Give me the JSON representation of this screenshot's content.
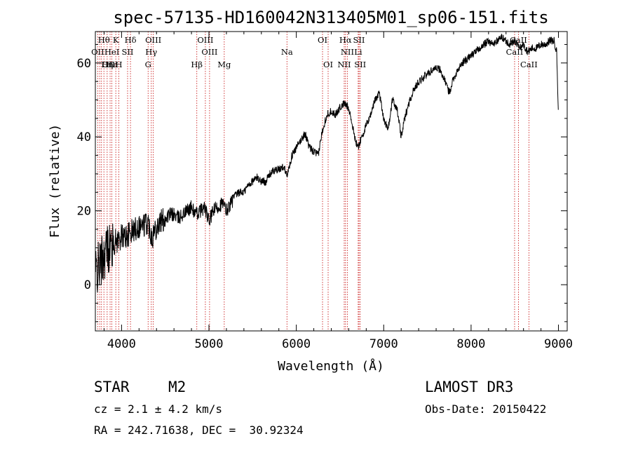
{
  "chart_data": {
    "type": "line",
    "title": "spec-57135-HD160042N313405M01_sp06-151.fits",
    "xlabel": "Wavelength (Å)",
    "ylabel": "Flux (relative)",
    "xlim": [
      3700,
      9100
    ],
    "ylim": [
      -12.5,
      68.5
    ],
    "xticks": [
      4000,
      5000,
      6000,
      7000,
      8000,
      9000
    ],
    "xtick_labels": [
      "4000",
      "5000",
      "6000",
      "7000",
      "8000",
      "9000"
    ],
    "yticks": [
      0,
      20,
      40,
      60
    ],
    "ytick_labels": [
      "0",
      "20",
      "40",
      "60"
    ],
    "series": [
      {
        "name": "flux",
        "color": "#000000",
        "x": [
          3700,
          3760,
          3800,
          3830,
          3860,
          3900,
          3950,
          4000,
          4050,
          4100,
          4150,
          4200,
          4250,
          4300,
          4350,
          4400,
          4450,
          4500,
          4550,
          4600,
          4650,
          4700,
          4750,
          4800,
          4850,
          4900,
          4950,
          5000,
          5050,
          5100,
          5150,
          5200,
          5250,
          5300,
          5350,
          5400,
          5450,
          5500,
          5550,
          5600,
          5650,
          5700,
          5750,
          5800,
          5850,
          5900,
          5950,
          6000,
          6050,
          6100,
          6150,
          6200,
          6250,
          6300,
          6350,
          6400,
          6450,
          6500,
          6550,
          6600,
          6650,
          6700,
          6750,
          6800,
          6850,
          6900,
          6950,
          7000,
          7050,
          7100,
          7150,
          7200,
          7250,
          7300,
          7350,
          7400,
          7450,
          7500,
          7550,
          7600,
          7650,
          7700,
          7750,
          7800,
          7850,
          7900,
          7950,
          8000,
          8050,
          8100,
          8150,
          8200,
          8250,
          8300,
          8350,
          8400,
          8450,
          8500,
          8550,
          8600,
          8650,
          8700,
          8750,
          8800,
          8850,
          8900,
          8950,
          8980,
          9000
        ],
        "y": [
          3,
          6,
          8,
          10,
          10,
          11,
          12,
          13,
          13,
          14,
          15,
          16,
          16,
          17,
          13,
          16,
          17,
          18,
          19,
          19,
          18,
          19,
          20,
          21,
          19,
          20,
          21,
          17,
          20,
          21,
          22,
          20,
          22,
          24,
          25,
          25,
          27,
          28,
          29,
          28,
          28,
          30,
          31,
          31,
          32,
          30,
          35,
          37,
          39,
          41,
          37,
          36,
          35,
          42,
          46,
          47,
          46,
          48,
          49,
          48,
          42,
          37,
          40,
          43,
          46,
          50,
          52,
          45,
          42,
          50,
          48,
          40,
          46,
          50,
          53,
          55,
          56,
          57,
          58,
          59,
          58,
          55,
          52,
          56,
          58,
          60,
          61,
          62,
          63,
          64,
          65,
          66,
          65,
          66,
          67,
          66,
          65,
          66,
          64,
          65,
          63,
          64,
          64,
          65,
          65,
          66,
          66,
          63,
          45
        ]
      }
    ],
    "lines_top": [
      {
        "label": "Hθ",
        "x": 3798
      },
      {
        "label": "K",
        "x": 3934
      },
      {
        "label": "Hδ",
        "x": 4102
      },
      {
        "label": "OIII",
        "x": 4363
      },
      {
        "label": "OIII",
        "x": 4959
      },
      {
        "label": "OI",
        "x": 6300
      },
      {
        "label": "Hα",
        "x": 6563
      },
      {
        "label": "SII",
        "x": 6717
      },
      {
        "label": "CaII",
        "x": 8542
      }
    ],
    "lines_middle": [
      {
        "label": "OII",
        "x": 3727
      },
      {
        "label": "HeI",
        "x": 3889
      },
      {
        "label": "SII",
        "x": 4069
      },
      {
        "label": "Hγ",
        "x": 4340
      },
      {
        "label": "OIII",
        "x": 5007
      },
      {
        "label": "Na",
        "x": 5893
      },
      {
        "label": "NII",
        "x": 6584
      },
      {
        "label": "Li",
        "x": 6708
      },
      {
        "label": "CaII",
        "x": 8498
      }
    ],
    "lines_bottom": [
      {
        "label": "OIII",
        "x": 3869
      },
      {
        "label": "Hε",
        "x": 3889
      },
      {
        "label": "Hη",
        "x": 3835
      },
      {
        "label": "H",
        "x": 3969
      },
      {
        "label": "G",
        "x": 4304
      },
      {
        "label": "Hβ",
        "x": 4861
      },
      {
        "label": "Mg",
        "x": 5175
      },
      {
        "label": "OI",
        "x": 6364
      },
      {
        "label": "NII",
        "x": 6548
      },
      {
        "label": "SII",
        "x": 6731
      },
      {
        "label": "CaII",
        "x": 8662
      }
    ],
    "marker_lines_x": [
      3727,
      3750,
      3770,
      3798,
      3835,
      3869,
      3889,
      3934,
      3969,
      4069,
      4102,
      4304,
      4340,
      4363,
      4861,
      4959,
      5007,
      5175,
      5893,
      6300,
      6364,
      6548,
      6563,
      6584,
      6708,
      6717,
      6731,
      8498,
      8542,
      8662
    ]
  },
  "info": {
    "class": "STAR",
    "subclass": "M2",
    "cz": "cz = 2.1 ± 4.2 km/s",
    "coords": "RA = 242.71638, DEC =  30.92324",
    "survey": "LAMOST DR3",
    "obs_date": "Obs-Date: 20150422"
  },
  "colors": {
    "axis": "#000000",
    "spectrum": "#000000",
    "marker": "#cc2222"
  }
}
